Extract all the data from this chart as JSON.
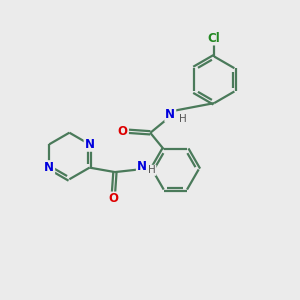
{
  "background_color": "#ebebeb",
  "bond_color": "#4a7a5a",
  "N_color": "#0000dd",
  "O_color": "#dd0000",
  "Cl_color": "#228822",
  "H_color": "#555555",
  "linewidth": 1.6,
  "double_sep": 0.055,
  "font_size": 8.5,
  "figsize": [
    3.0,
    3.0
  ],
  "dpi": 100,
  "xlim": [
    0,
    10
  ],
  "ylim": [
    0,
    10
  ]
}
